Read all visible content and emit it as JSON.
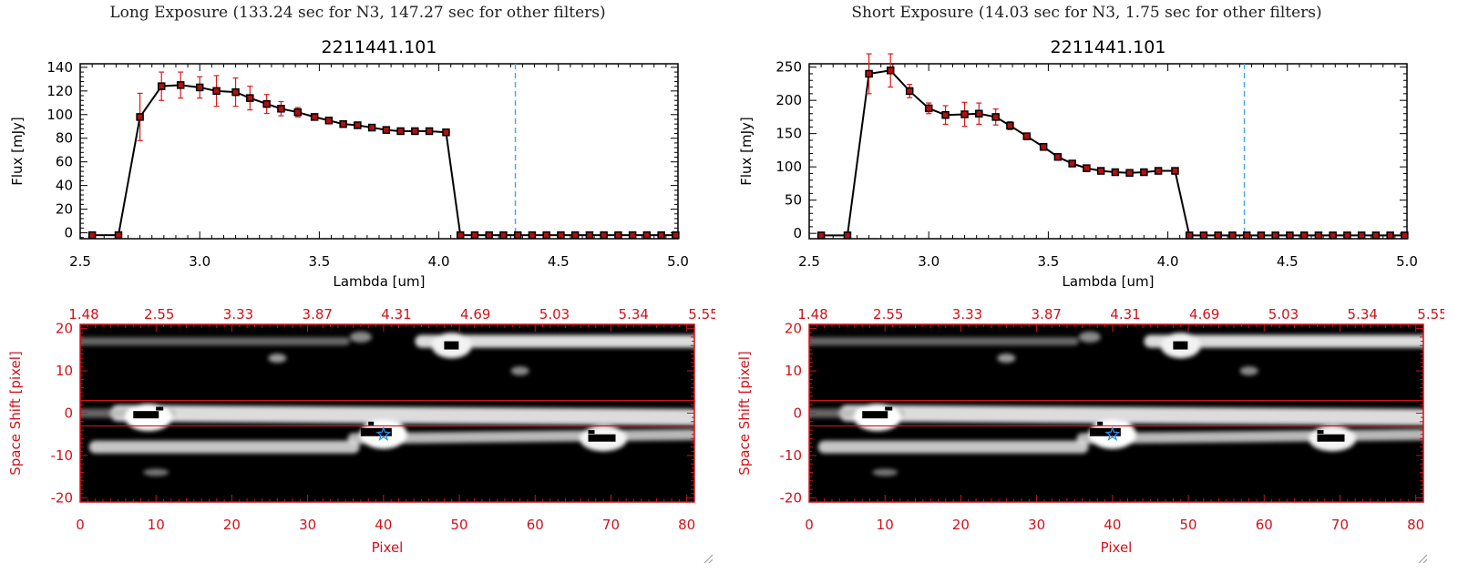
{
  "colors": {
    "accent": "#d0131a",
    "line": "#000000",
    "error": "#e01818",
    "marker_edge": "#000000",
    "marker_fill": "#b01010",
    "cutoff": "#4aa8e8",
    "star": "#2d8fe8"
  },
  "panels": [
    {
      "title": "Long Exposure (133.24 sec for N3, 147.27 sec for other filters)",
      "plot_title": "2211441.101",
      "spectrum": {
        "xlabel": "Lambda [um]",
        "ylabel": "Flux [mJy]"
      },
      "image": {
        "xlabel": "Pixel",
        "ylabel": "Space Shift [pixel]"
      }
    },
    {
      "title": "Short Exposure (14.03 sec for N3, 1.75 sec for other filters)",
      "plot_title": "2211441.101",
      "spectrum": {
        "xlabel": "Lambda [um]",
        "ylabel": "Flux [mJy]"
      },
      "image": {
        "xlabel": "Pixel",
        "ylabel": "Space Shift [pixel]"
      }
    }
  ],
  "chart_data": [
    {
      "type": "line",
      "title": "2211441.101",
      "xlabel": "Lambda [um]",
      "ylabel": "Flux [mJy]",
      "xlim": [
        2.5,
        5.0
      ],
      "ylim": [
        -5,
        143
      ],
      "xticks": [
        "2.5",
        "3.0",
        "3.5",
        "4.0",
        "4.5",
        "5.0"
      ],
      "yticks": [
        "0",
        "20",
        "40",
        "60",
        "80",
        "100",
        "120",
        "140"
      ],
      "ytick_values": [
        0,
        20,
        40,
        60,
        80,
        100,
        120,
        140
      ],
      "xtick_values": [
        2.5,
        3.0,
        3.5,
        4.0,
        4.5,
        5.0
      ],
      "cutoff_line": 4.32,
      "x": [
        2.55,
        2.66,
        2.75,
        2.84,
        2.92,
        3.0,
        3.07,
        3.15,
        3.21,
        3.28,
        3.34,
        3.41,
        3.48,
        3.54,
        3.6,
        3.66,
        3.72,
        3.78,
        3.84,
        3.9,
        3.96,
        4.03,
        4.09,
        4.15,
        4.21,
        4.27,
        4.33,
        4.39,
        4.45,
        4.51,
        4.57,
        4.63,
        4.69,
        4.75,
        4.81,
        4.87,
        4.93,
        4.99
      ],
      "y": [
        -2,
        -2,
        98,
        124,
        125,
        123,
        120,
        119,
        114,
        109,
        105,
        102,
        98,
        95,
        92,
        91,
        89,
        87,
        86,
        86,
        86,
        85,
        -2,
        -2,
        -2,
        -2,
        -2,
        -2,
        -2,
        -2,
        -2,
        -2,
        -2,
        -2,
        -2,
        -2,
        -2,
        -2
      ],
      "yerr": [
        0,
        0,
        20,
        12,
        11,
        9,
        13,
        12,
        10,
        8,
        6,
        4,
        2,
        1,
        1,
        1,
        1,
        1,
        1,
        1,
        1,
        1,
        0,
        0,
        0,
        0,
        0,
        0,
        0,
        0,
        0,
        0,
        0,
        0,
        0,
        0,
        0,
        0
      ]
    },
    {
      "type": "line",
      "title": "2211441.101",
      "xlabel": "Lambda [um]",
      "ylabel": "Flux [mJy]",
      "xlim": [
        2.5,
        5.0
      ],
      "ylim": [
        -8,
        255
      ],
      "xticks": [
        "2.5",
        "3.0",
        "3.5",
        "4.0",
        "4.5",
        "5.0"
      ],
      "yticks": [
        "0",
        "50",
        "100",
        "150",
        "200",
        "250"
      ],
      "ytick_values": [
        0,
        50,
        100,
        150,
        200,
        250
      ],
      "xtick_values": [
        2.5,
        3.0,
        3.5,
        4.0,
        4.5,
        5.0
      ],
      "cutoff_line": 4.32,
      "x": [
        2.55,
        2.66,
        2.75,
        2.84,
        2.92,
        3.0,
        3.07,
        3.15,
        3.21,
        3.28,
        3.34,
        3.41,
        3.48,
        3.54,
        3.6,
        3.66,
        3.72,
        3.78,
        3.84,
        3.9,
        3.96,
        4.03,
        4.09,
        4.15,
        4.21,
        4.27,
        4.33,
        4.39,
        4.45,
        4.51,
        4.57,
        4.63,
        4.69,
        4.75,
        4.81,
        4.87,
        4.93,
        4.99
      ],
      "y": [
        -3,
        -3,
        240,
        245,
        214,
        188,
        178,
        179,
        180,
        175,
        162,
        146,
        130,
        115,
        105,
        98,
        94,
        92,
        91,
        92,
        94,
        94,
        -3,
        -3,
        -3,
        -3,
        -3,
        -3,
        -3,
        -3,
        -3,
        -3,
        -3,
        -3,
        -3,
        -3,
        -3,
        -3
      ],
      "yerr": [
        0,
        0,
        30,
        25,
        10,
        8,
        14,
        18,
        16,
        12,
        6,
        4,
        2,
        1,
        1,
        1,
        1,
        1,
        1,
        1,
        1,
        1,
        0,
        0,
        0,
        0,
        0,
        0,
        0,
        0,
        0,
        0,
        0,
        0,
        0,
        0,
        0,
        0
      ]
    },
    {
      "type": "heatmap",
      "xlabel": "Pixel",
      "ylabel": "Space Shift [pixel]",
      "xlim": [
        0,
        81
      ],
      "ylim": [
        -21,
        21
      ],
      "xticks": [
        "0",
        "10",
        "20",
        "30",
        "40",
        "50",
        "60",
        "70",
        "80"
      ],
      "yticks": [
        "-20",
        "-10",
        "0",
        "10",
        "20"
      ],
      "top_ticks": [
        "1.48",
        "2.55",
        "3.33",
        "3.87",
        "4.31",
        "4.69",
        "5.03",
        "5.34",
        "5.55"
      ],
      "extraction_band": [
        -3,
        3
      ],
      "star": [
        40,
        -5
      ]
    },
    {
      "type": "heatmap",
      "xlabel": "Pixel",
      "ylabel": "Space Shift [pixel]",
      "xlim": [
        0,
        81
      ],
      "ylim": [
        -21,
        21
      ],
      "xticks": [
        "0",
        "10",
        "20",
        "30",
        "40",
        "50",
        "60",
        "70",
        "80"
      ],
      "yticks": [
        "-20",
        "-10",
        "0",
        "10",
        "20"
      ],
      "top_ticks": [
        "1.48",
        "2.55",
        "3.33",
        "3.87",
        "4.31",
        "4.69",
        "5.03",
        "5.34",
        "5.55"
      ],
      "extraction_band": [
        -3,
        3
      ],
      "star": [
        40,
        -5
      ]
    }
  ]
}
